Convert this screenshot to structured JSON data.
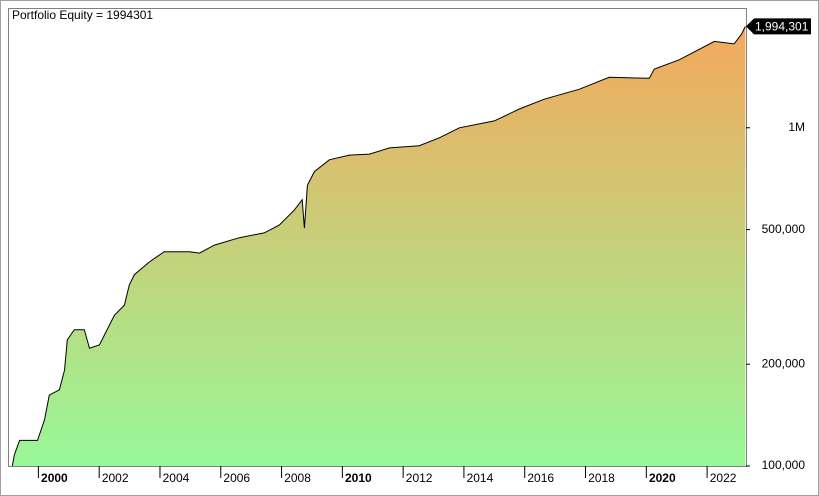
{
  "chart_data": {
    "type": "line",
    "title": "Portfolio Equity = 1994301",
    "last_label": "1,994,301",
    "log_scale": true,
    "colors": {
      "line": "#000000",
      "fill_top": "#f4a85c",
      "fill_bottom": "#98f898",
      "marker": "#000000"
    },
    "x": [
      1999.14,
      1999.21,
      1999.38,
      1999.97,
      2000.2,
      2000.36,
      2000.69,
      2000.86,
      2000.95,
      2001.18,
      2001.51,
      2001.68,
      2002.01,
      2002.17,
      2002.5,
      2002.83,
      2002.99,
      2003.16,
      2003.65,
      2004.14,
      2004.97,
      2005.3,
      2005.79,
      2006.61,
      2007.43,
      2007.93,
      2008.42,
      2008.68,
      2008.75,
      2008.85,
      2009.08,
      2009.57,
      2010.23,
      2010.89,
      2011.55,
      2012.53,
      2013.19,
      2013.85,
      2015.0,
      2015.82,
      2016.64,
      2017.8,
      2018.78,
      2020.1,
      2020.26,
      2021.09,
      2022.24,
      2022.89,
      2023.13,
      2023.26
    ],
    "values": [
      100000,
      108000,
      119000,
      119000,
      137000,
      162000,
      168000,
      192000,
      236000,
      253000,
      253000,
      223000,
      228000,
      244000,
      279000,
      299000,
      343000,
      368000,
      401000,
      430000,
      430000,
      426000,
      450000,
      473000,
      489000,
      516000,
      571000,
      613000,
      505000,
      676000,
      742000,
      804000,
      830000,
      836000,
      872000,
      885000,
      934000,
      1000000,
      1048000,
      1136000,
      1215000,
      1300000,
      1410000,
      1400000,
      1490000,
      1590000,
      1800000,
      1770000,
      1890000,
      1994301
    ],
    "xlim": [
      1999.0,
      2023.28
    ],
    "xticks": [
      2000,
      2002,
      2004,
      2006,
      2008,
      2010,
      2012,
      2014,
      2016,
      2018,
      2020,
      2022
    ],
    "ylim": [
      100000,
      2260000
    ],
    "yticks": [
      {
        "value": 100000,
        "label": "100,000"
      },
      {
        "value": 200000,
        "label": "200,000"
      },
      {
        "value": 500000,
        "label": "500,000"
      },
      {
        "value": 1000000,
        "label": "1M"
      }
    ]
  }
}
